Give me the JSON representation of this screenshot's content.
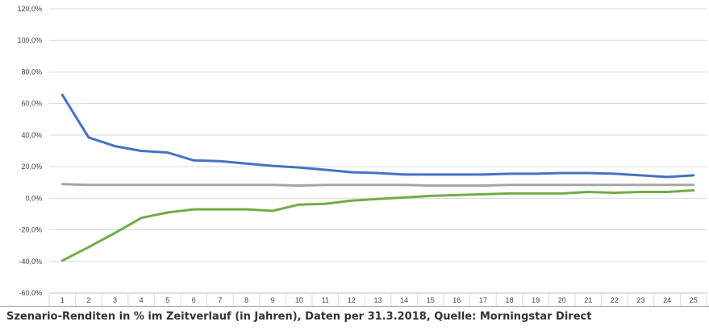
{
  "caption": "Szenario-Renditen in % im Zeitverlauf (in Jahren), Daten per 31.3.2018, Quelle: Morningstar Direct",
  "chart_data": {
    "type": "line",
    "title": "",
    "xlabel": "",
    "ylabel": "",
    "categories": [
      "1",
      "2",
      "3",
      "4",
      "5",
      "6",
      "7",
      "8",
      "9",
      "10",
      "11",
      "12",
      "13",
      "14",
      "15",
      "16",
      "17",
      "18",
      "19",
      "20",
      "21",
      "22",
      "23",
      "24",
      "25"
    ],
    "ylim": [
      -60,
      120
    ],
    "yticks": [
      -60,
      -40,
      -20,
      0,
      20,
      40,
      60,
      80,
      100,
      120
    ],
    "ytick_labels": [
      "-60,0%",
      "-40,0%",
      "-20,0%",
      "0,0%",
      "20,0%",
      "40,0%",
      "60,0%",
      "80,0%",
      "100,0%",
      "120,0%"
    ],
    "grid": true,
    "legend": "none",
    "series": [
      {
        "color": "#4472c4",
        "values": [
          65.5,
          38.5,
          33,
          30,
          29,
          24,
          23.5,
          22,
          20.5,
          19.5,
          18,
          16.5,
          16,
          15,
          15,
          15,
          15,
          15.5,
          15.5,
          16,
          16,
          15.5,
          14.5,
          13.5,
          14.5
        ]
      },
      {
        "color": "#a5a5a5",
        "values": [
          9,
          8.5,
          8.5,
          8.5,
          8.5,
          8.5,
          8.5,
          8.5,
          8.5,
          8,
          8.5,
          8.5,
          8.5,
          8.5,
          8,
          8,
          8,
          8.5,
          8.5,
          8.5,
          8.5,
          8.5,
          8.5,
          8.5,
          8.5
        ]
      },
      {
        "color": "#70ad47",
        "values": [
          -39.5,
          -31,
          -22,
          -12.5,
          -9,
          -7,
          -7,
          -7,
          -8,
          -4,
          -3.5,
          -1.5,
          -0.5,
          0.5,
          1.5,
          2,
          2.5,
          3,
          3,
          3,
          4,
          3.5,
          4,
          4,
          5
        ]
      }
    ]
  }
}
